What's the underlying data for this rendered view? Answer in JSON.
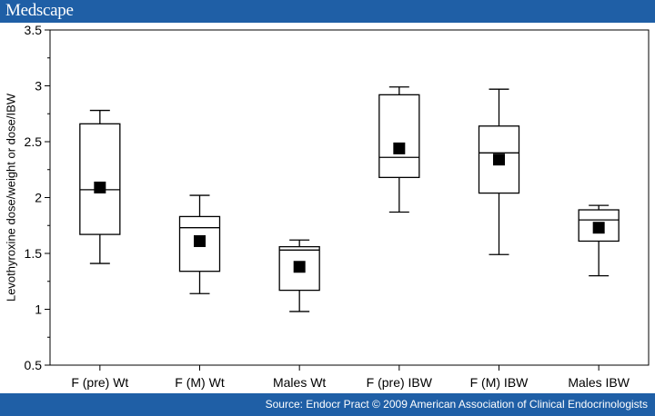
{
  "header": {
    "brand": "Medscape"
  },
  "footer": {
    "source": "Source: Endocr Pract © 2009 American Association of Clinical Endocrinologists"
  },
  "colors": {
    "bar": "#1f5fa6",
    "box_stroke": "#000000",
    "mean_marker": "#000000"
  },
  "chart_data": {
    "type": "box",
    "title": "",
    "xlabel": "",
    "ylabel": "Levothyroxine dose/weight or dose/IBW",
    "ylim": [
      0.5,
      3.5
    ],
    "yticks": [
      "0.5",
      "1",
      "1.5",
      "2",
      "2.5",
      "3",
      "3.5"
    ],
    "categories": [
      "F (pre) Wt",
      "F (M) Wt",
      "Males Wt",
      "F (pre) IBW",
      "F (M) IBW",
      "Males IBW"
    ],
    "boxes": [
      {
        "min": 1.41,
        "q1": 1.67,
        "median": 2.07,
        "q3": 2.66,
        "max": 2.78,
        "mean": 2.09
      },
      {
        "min": 1.14,
        "q1": 1.34,
        "median": 1.73,
        "q3": 1.83,
        "max": 2.02,
        "mean": 1.61
      },
      {
        "min": 0.98,
        "q1": 1.17,
        "median": 1.53,
        "q3": 1.56,
        "max": 1.62,
        "mean": 1.38
      },
      {
        "min": 1.87,
        "q1": 2.18,
        "median": 2.36,
        "q3": 2.92,
        "max": 2.99,
        "mean": 2.44
      },
      {
        "min": 1.49,
        "q1": 2.04,
        "median": 2.4,
        "q3": 2.64,
        "max": 2.97,
        "mean": 2.34
      },
      {
        "min": 1.3,
        "q1": 1.61,
        "median": 1.8,
        "q3": 1.89,
        "max": 1.93,
        "mean": 1.73
      }
    ],
    "grid": false
  }
}
